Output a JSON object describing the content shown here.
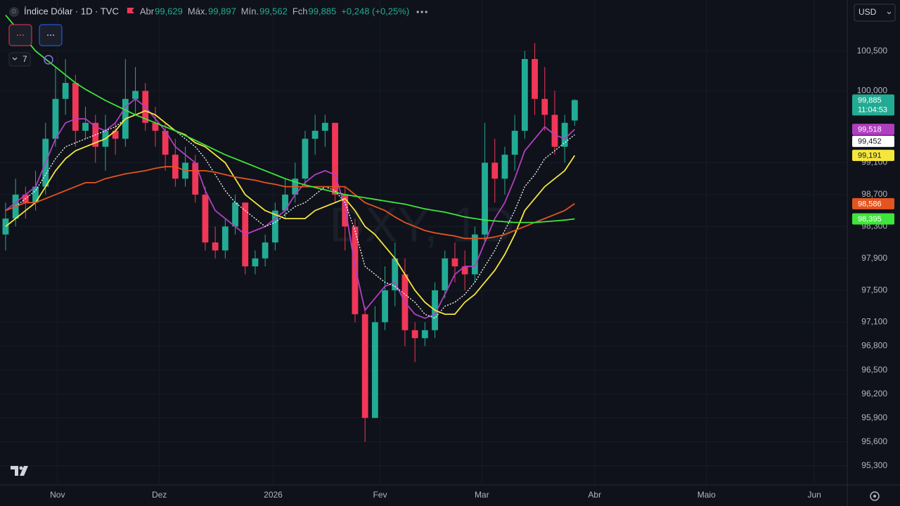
{
  "chart_data": {
    "type": "candlestick",
    "header": {
      "symbol_icon": "D",
      "title": "Índice Dólar · 1D · TVC",
      "ohlc": [
        {
          "label": "Abr",
          "value": "99,629"
        },
        {
          "label": "Máx.",
          "value": "99,897"
        },
        {
          "label": "Mín.",
          "value": "99,562"
        },
        {
          "label": "Fch",
          "value": "99,885"
        }
      ],
      "change": "+0,248 (+0,25%)"
    },
    "currency": "USD",
    "indicator_count": 7,
    "watermark": "DXY, 1D",
    "up_color": "#22ab94",
    "down_color": "#f23658",
    "last_label": "99,885",
    "countdown": "11:04:53",
    "candles": [
      [
        98.2,
        98.6,
        98.0,
        98.4
      ],
      [
        98.4,
        98.9,
        98.3,
        98.7
      ],
      [
        98.7,
        98.8,
        98.4,
        98.6
      ],
      [
        98.6,
        99.0,
        98.5,
        98.8
      ],
      [
        98.8,
        99.6,
        98.7,
        99.4
      ],
      [
        99.4,
        100.3,
        99.3,
        99.9
      ],
      [
        99.9,
        100.4,
        99.7,
        100.1
      ],
      [
        100.1,
        100.2,
        99.3,
        99.5
      ],
      [
        99.5,
        99.8,
        99.4,
        99.6
      ],
      [
        99.6,
        99.7,
        99.1,
        99.3
      ],
      [
        99.3,
        99.7,
        99.0,
        99.5
      ],
      [
        99.5,
        99.6,
        99.2,
        99.4
      ],
      [
        99.4,
        100.4,
        99.3,
        99.9
      ],
      [
        99.9,
        100.3,
        99.7,
        100.0
      ],
      [
        100.0,
        100.1,
        99.5,
        99.6
      ],
      [
        99.6,
        99.8,
        99.3,
        99.5
      ],
      [
        99.5,
        99.6,
        99.0,
        99.2
      ],
      [
        99.2,
        99.4,
        98.8,
        98.9
      ],
      [
        98.9,
        99.3,
        98.8,
        99.1
      ],
      [
        99.1,
        99.2,
        98.6,
        98.7
      ],
      [
        98.7,
        98.8,
        98.0,
        98.1
      ],
      [
        98.1,
        98.3,
        97.9,
        98.0
      ],
      [
        98.0,
        98.4,
        97.9,
        98.3
      ],
      [
        98.3,
        98.7,
        98.2,
        98.6
      ],
      [
        98.6,
        98.6,
        97.7,
        97.8
      ],
      [
        97.8,
        98.0,
        97.7,
        97.9
      ],
      [
        97.9,
        98.2,
        97.8,
        98.1
      ],
      [
        98.1,
        98.6,
        98.0,
        98.5
      ],
      [
        98.5,
        98.9,
        98.4,
        98.7
      ],
      [
        98.7,
        99.1,
        98.6,
        98.9
      ],
      [
        98.9,
        99.5,
        98.8,
        99.4
      ],
      [
        99.4,
        99.7,
        99.2,
        99.5
      ],
      [
        99.5,
        99.7,
        99.3,
        99.6
      ],
      [
        99.6,
        99.6,
        98.6,
        98.7
      ],
      [
        98.7,
        98.8,
        98.0,
        98.3
      ],
      [
        98.3,
        98.4,
        97.1,
        97.2
      ],
      [
        97.2,
        97.3,
        95.6,
        95.9
      ],
      [
        95.9,
        97.3,
        95.9,
        97.1
      ],
      [
        97.1,
        97.8,
        97.0,
        97.5
      ],
      [
        97.5,
        98.1,
        97.3,
        97.9
      ],
      [
        97.7,
        97.9,
        96.8,
        97.0
      ],
      [
        97.0,
        97.1,
        96.6,
        96.9
      ],
      [
        96.9,
        97.1,
        96.8,
        97.0
      ],
      [
        97.0,
        97.6,
        96.9,
        97.5
      ],
      [
        97.5,
        98.0,
        97.4,
        97.9
      ],
      [
        97.9,
        98.1,
        97.6,
        97.8
      ],
      [
        97.8,
        98.0,
        97.5,
        97.7
      ],
      [
        97.7,
        98.3,
        97.6,
        98.2
      ],
      [
        98.2,
        99.6,
        98.1,
        99.1
      ],
      [
        99.1,
        99.4,
        98.6,
        98.9
      ],
      [
        98.9,
        99.3,
        98.7,
        99.2
      ],
      [
        99.2,
        99.7,
        99.0,
        99.5
      ],
      [
        99.5,
        100.5,
        99.4,
        100.4
      ],
      [
        100.4,
        100.6,
        99.7,
        99.9
      ],
      [
        99.9,
        100.3,
        99.5,
        99.7
      ],
      [
        99.7,
        100.0,
        99.2,
        99.3
      ],
      [
        99.3,
        99.7,
        99.1,
        99.6
      ],
      [
        99.629,
        99.897,
        99.562,
        99.885
      ]
    ],
    "series": [
      {
        "color": "#b03fc0",
        "style": "solid",
        "last_value_label": "99,518",
        "values": [
          98.5,
          98.6,
          98.7,
          98.8,
          99.1,
          99.4,
          99.6,
          99.65,
          99.65,
          99.55,
          99.5,
          99.6,
          99.8,
          99.9,
          99.8,
          99.65,
          99.5,
          99.3,
          99.2,
          99.1,
          98.75,
          98.5,
          98.4,
          98.3,
          98.2,
          98.25,
          98.3,
          98.4,
          98.5,
          98.7,
          98.85,
          98.95,
          99.0,
          98.95,
          98.55,
          97.8,
          97.25,
          97.4,
          97.55,
          97.6,
          97.35,
          97.2,
          97.15,
          97.2,
          97.45,
          97.7,
          97.8,
          97.8,
          98.1,
          98.4,
          98.6,
          98.9,
          99.25,
          99.4,
          99.55,
          99.45,
          99.4,
          99.518
        ]
      },
      {
        "color": "#ffffff",
        "style": "dotted",
        "last_value_label": "99,452",
        "values": [
          98.5,
          98.55,
          98.65,
          98.75,
          98.95,
          99.15,
          99.3,
          99.35,
          99.4,
          99.45,
          99.5,
          99.55,
          99.65,
          99.7,
          99.75,
          99.7,
          99.6,
          99.5,
          99.4,
          99.3,
          99.15,
          98.95,
          98.75,
          98.6,
          98.5,
          98.4,
          98.3,
          98.35,
          98.45,
          98.55,
          98.6,
          98.7,
          98.8,
          98.75,
          98.6,
          98.25,
          97.8,
          97.7,
          97.6,
          97.55,
          97.45,
          97.35,
          97.2,
          97.15,
          97.3,
          97.35,
          97.45,
          97.6,
          97.8,
          98.0,
          98.25,
          98.5,
          98.8,
          98.95,
          99.15,
          99.25,
          99.35,
          99.452
        ]
      },
      {
        "color": "#f5e63c",
        "style": "solid",
        "last_value_label": "99,191",
        "values": [
          98.3,
          98.4,
          98.5,
          98.6,
          98.8,
          99.0,
          99.15,
          99.25,
          99.3,
          99.35,
          99.4,
          99.5,
          99.65,
          99.7,
          99.75,
          99.7,
          99.6,
          99.5,
          99.45,
          99.35,
          99.3,
          99.2,
          99.1,
          98.9,
          98.7,
          98.6,
          98.5,
          98.45,
          98.4,
          98.4,
          98.4,
          98.5,
          98.55,
          98.6,
          98.65,
          98.5,
          98.3,
          98.2,
          98.05,
          97.9,
          97.7,
          97.5,
          97.35,
          97.25,
          97.2,
          97.2,
          97.35,
          97.45,
          97.6,
          97.75,
          97.95,
          98.2,
          98.5,
          98.65,
          98.8,
          98.9,
          99.0,
          99.191
        ]
      },
      {
        "color": "#e4541f",
        "style": "solid",
        "last_value_label": "98,586",
        "values": [
          98.5,
          98.55,
          98.6,
          98.6,
          98.65,
          98.7,
          98.75,
          98.8,
          98.85,
          98.85,
          98.9,
          98.93,
          98.96,
          98.98,
          99.0,
          99.03,
          99.05,
          99.05,
          99.0,
          99.0,
          99.0,
          98.98,
          98.95,
          98.92,
          98.9,
          98.88,
          98.85,
          98.83,
          98.8,
          98.8,
          98.8,
          98.8,
          98.8,
          98.8,
          98.8,
          98.7,
          98.6,
          98.55,
          98.5,
          98.42,
          98.35,
          98.3,
          98.25,
          98.22,
          98.2,
          98.18,
          98.15,
          98.15,
          98.15,
          98.17,
          98.2,
          98.25,
          98.3,
          98.35,
          98.4,
          98.45,
          98.5,
          98.586
        ]
      },
      {
        "color": "#3ee53a",
        "style": "solid",
        "last_value_label": "98,395",
        "values": [
          100.95,
          100.8,
          100.65,
          100.5,
          100.4,
          100.3,
          100.2,
          100.1,
          100.02,
          99.95,
          99.88,
          99.82,
          99.76,
          99.7,
          99.65,
          99.6,
          99.55,
          99.5,
          99.44,
          99.38,
          99.32,
          99.26,
          99.2,
          99.15,
          99.1,
          99.05,
          99.0,
          98.95,
          98.9,
          98.86,
          98.82,
          98.79,
          98.76,
          98.73,
          98.7,
          98.68,
          98.66,
          98.64,
          98.62,
          98.6,
          98.58,
          98.55,
          98.52,
          98.5,
          98.48,
          98.45,
          98.42,
          98.4,
          98.38,
          98.37,
          98.36,
          98.35,
          98.35,
          98.35,
          98.36,
          98.37,
          98.38,
          98.395
        ]
      }
    ],
    "xlim": [
      -0.56,
      84.3
    ],
    "xticks": [
      {
        "value": 5.2,
        "label": "Nov"
      },
      {
        "value": 15.4,
        "label": "Dez"
      },
      {
        "value": 26.8,
        "label": "2026"
      },
      {
        "value": 37.5,
        "label": "Fev"
      },
      {
        "value": 47.7,
        "label": "Mar"
      },
      {
        "value": 59.0,
        "label": "Abr"
      },
      {
        "value": 70.2,
        "label": "Maio"
      },
      {
        "value": 81.0,
        "label": "Jun"
      }
    ],
    "ylim": [
      95.06,
      101.14
    ],
    "yticks": [
      {
        "value": 100.5,
        "label": "100,500"
      },
      {
        "value": 100.0,
        "label": "100,000"
      },
      {
        "value": 99.1,
        "label": "99,100"
      },
      {
        "value": 98.7,
        "label": "98,700"
      },
      {
        "value": 98.3,
        "label": "98,300"
      },
      {
        "value": 97.9,
        "label": "97,900"
      },
      {
        "value": 97.5,
        "label": "97,500"
      },
      {
        "value": 97.1,
        "label": "97,100"
      },
      {
        "value": 96.8,
        "label": "96,800"
      },
      {
        "value": 96.5,
        "label": "96,500"
      },
      {
        "value": 96.2,
        "label": "96,200"
      },
      {
        "value": 95.9,
        "label": "95,900"
      },
      {
        "value": 95.6,
        "label": "95,600"
      },
      {
        "value": 95.3,
        "label": "95,300"
      }
    ],
    "grid": true
  }
}
